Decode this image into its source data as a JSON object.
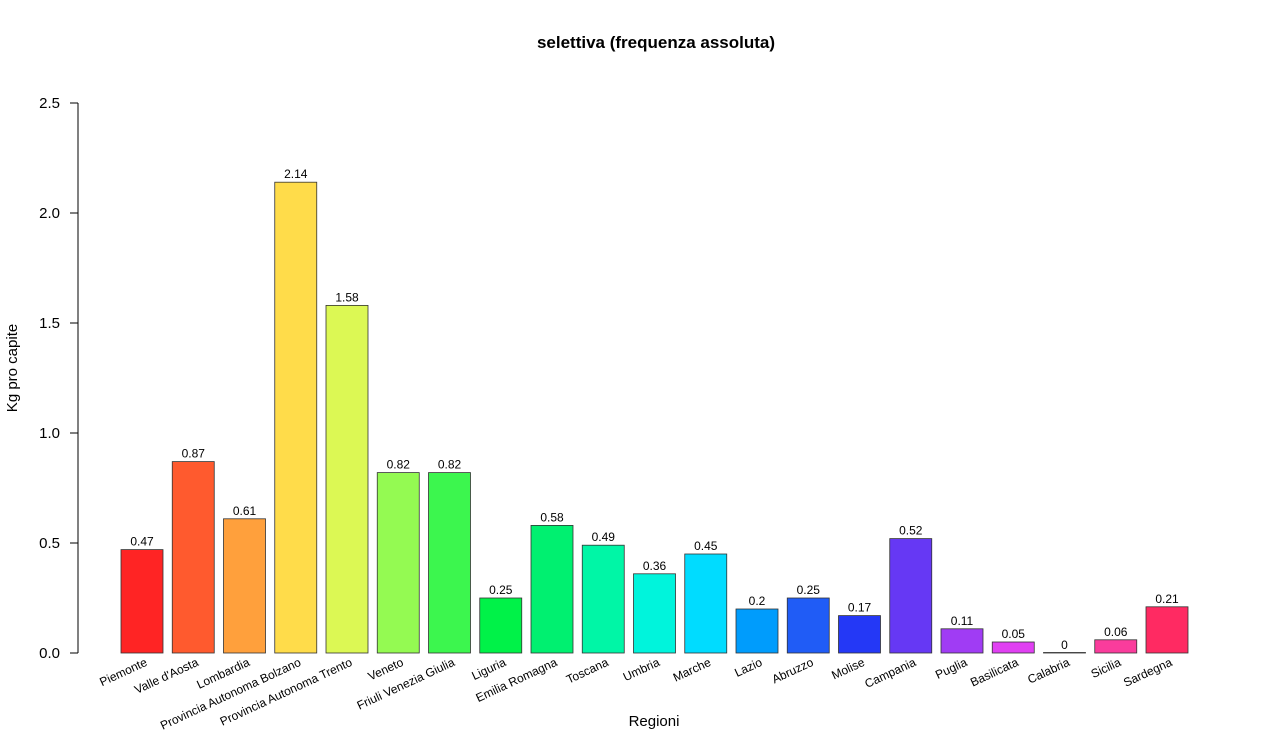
{
  "chart_data": {
    "type": "bar",
    "title": "selettiva  (frequenza assoluta)",
    "xlabel": "Regioni",
    "ylabel": "Kg pro capite",
    "ylim": [
      0,
      2.5
    ],
    "yticks": [
      "0.0",
      "0.5",
      "1.0",
      "1.5",
      "2.0",
      "2.5"
    ],
    "grid": false,
    "categories": [
      "Piemonte",
      "Valle d'Aosta",
      "Lombardia",
      "Provincia Autonoma Bolzano",
      "Provincia Autonoma Trento",
      "Veneto",
      "Friuli Venezia Giulia",
      "Liguria",
      "Emilia Romagna",
      "Toscana",
      "Umbria",
      "Marche",
      "Lazio",
      "Abruzzo",
      "Molise",
      "Campania",
      "Puglia",
      "Basilicata",
      "Calabria",
      "Sicilia",
      "Sardegna"
    ],
    "values": [
      0.47,
      0.87,
      0.61,
      2.14,
      1.58,
      0.82,
      0.82,
      0.25,
      0.58,
      0.49,
      0.36,
      0.45,
      0.2,
      0.25,
      0.17,
      0.52,
      0.11,
      0.05,
      0,
      0.06,
      0.21
    ],
    "value_labels": [
      "0.47",
      "0.87",
      "0.61",
      "2.14",
      "1.58",
      "0.82",
      "0.82",
      "0.25",
      "0.58",
      "0.49",
      "0.36",
      "0.45",
      "0.2",
      "0.25",
      "0.17",
      "0.52",
      "0.11",
      "0.05",
      "0",
      "0.06",
      "0.21"
    ],
    "colors": [
      "#FF2424",
      "#FF5A2E",
      "#FFA03C",
      "#FFDC4A",
      "#DCF854",
      "#94FA52",
      "#3CF64E",
      "#00F248",
      "#00F070",
      "#00F6A6",
      "#00F4DC",
      "#00DCFF",
      "#009CFC",
      "#205CF6",
      "#2438F6",
      "#6638F4",
      "#A03CF4",
      "#E040F2",
      "#F23CBC",
      "#FA3C9C",
      "#FF2A62"
    ]
  }
}
